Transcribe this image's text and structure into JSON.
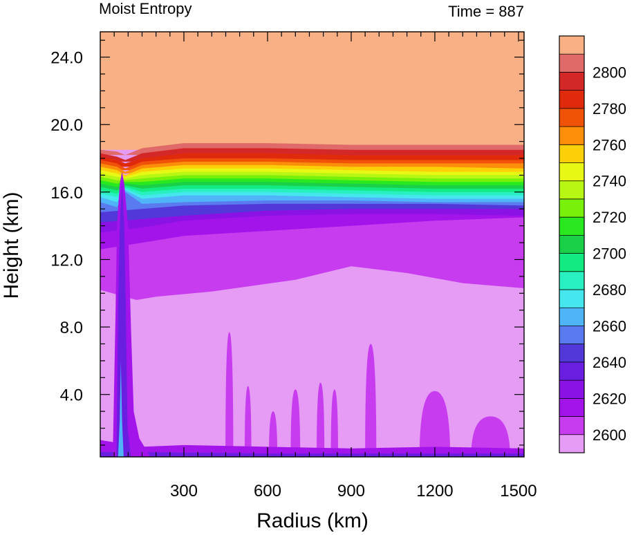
{
  "chart_data": {
    "type": "heatmap",
    "title": "Moist Entropy",
    "time_label": "Time = 887",
    "xlabel": "Radius (km)",
    "ylabel": "Height (km)",
    "xlim": [
      0,
      1520
    ],
    "ylim": [
      0.3,
      25.5
    ],
    "x_ticks": [
      300,
      600,
      900,
      1200,
      1500
    ],
    "x_tick_labels": [
      "300",
      "600",
      "900",
      "1200",
      "1500"
    ],
    "y_ticks": [
      4,
      8,
      12,
      16,
      20,
      24
    ],
    "y_tick_labels": [
      "4.0",
      "8.0",
      "12.0",
      "16.0",
      "20.0",
      "24.0"
    ],
    "colorbar": {
      "levels": [
        2600,
        2610,
        2620,
        2630,
        2640,
        2650,
        2660,
        2670,
        2680,
        2690,
        2700,
        2710,
        2720,
        2730,
        2740,
        2750,
        2760,
        2770,
        2780,
        2790,
        2800
      ],
      "labels": [
        "2600",
        "2620",
        "2640",
        "2660",
        "2680",
        "2700",
        "2720",
        "2740",
        "2760",
        "2780",
        "2800"
      ],
      "colors": [
        "#e69cf5",
        "#c83cf0",
        "#a314ea",
        "#8a12e4",
        "#6a1ee0",
        "#5238d8",
        "#5a7af0",
        "#4fb4f8",
        "#46e6ee",
        "#28f0c0",
        "#14ea82",
        "#1ad048",
        "#2ae820",
        "#78f00a",
        "#b8f614",
        "#e6f814",
        "#fcd008",
        "#fc8e0a",
        "#f05208",
        "#e02a0c",
        "#d42828",
        "#e06a6a",
        "#f8b084"
      ]
    },
    "layers": [
      {
        "name": "2800",
        "color": "#f8b084",
        "top": [
          [
            0,
            25.5
          ],
          [
            1520,
            25.5
          ]
        ],
        "bottom": [
          [
            0,
            18.5
          ],
          [
            1520,
            18.5
          ]
        ]
      },
      {
        "name": "2790",
        "color": "#e06a6a",
        "top": [
          [
            0,
            18.5
          ],
          [
            60,
            18.4
          ],
          [
            90,
            18.2
          ],
          [
            150,
            18.6
          ],
          [
            300,
            18.9
          ],
          [
            600,
            18.9
          ],
          [
            900,
            18.8
          ],
          [
            1200,
            18.8
          ],
          [
            1520,
            18.8
          ]
        ],
        "bottom": [
          [
            0,
            18.2
          ],
          [
            1520,
            18.2
          ]
        ]
      },
      {
        "name": "2780",
        "color": "#d42828",
        "top": [
          [
            0,
            18.3
          ],
          [
            60,
            18.1
          ],
          [
            90,
            17.9
          ],
          [
            150,
            18.3
          ],
          [
            300,
            18.6
          ],
          [
            600,
            18.6
          ],
          [
            900,
            18.5
          ],
          [
            1200,
            18.5
          ],
          [
            1520,
            18.5
          ]
        ],
        "bottom": [
          [
            0,
            17.8
          ],
          [
            1520,
            17.8
          ]
        ]
      },
      {
        "name": "2770",
        "color": "#e02a0c",
        "top": [
          [
            0,
            18.1
          ],
          [
            60,
            17.9
          ],
          [
            90,
            17.7
          ],
          [
            150,
            18.0
          ],
          [
            300,
            18.3
          ],
          [
            600,
            18.3
          ],
          [
            900,
            18.2
          ],
          [
            1200,
            18.2
          ],
          [
            1520,
            18.2
          ]
        ],
        "bottom": [
          [
            0,
            17.5
          ],
          [
            1520,
            17.5
          ]
        ]
      },
      {
        "name": "2760",
        "color": "#f05208",
        "top": [
          [
            0,
            17.9
          ],
          [
            60,
            17.7
          ],
          [
            90,
            17.4
          ],
          [
            150,
            17.8
          ],
          [
            300,
            18.0
          ],
          [
            600,
            18.0
          ],
          [
            900,
            17.9
          ],
          [
            1200,
            17.9
          ],
          [
            1520,
            17.9
          ]
        ],
        "bottom": [
          [
            0,
            17.3
          ],
          [
            1520,
            17.3
          ]
        ]
      },
      {
        "name": "2750",
        "color": "#fc8e0a",
        "top": [
          [
            0,
            17.7
          ],
          [
            60,
            17.5
          ],
          [
            90,
            17.2
          ],
          [
            150,
            17.6
          ],
          [
            300,
            17.8
          ],
          [
            600,
            17.8
          ],
          [
            900,
            17.7
          ],
          [
            1200,
            17.7
          ],
          [
            1520,
            17.7
          ]
        ],
        "bottom": [
          [
            0,
            17.1
          ],
          [
            1520,
            17.1
          ]
        ]
      },
      {
        "name": "2740",
        "color": "#fcd008",
        "top": [
          [
            0,
            17.5
          ],
          [
            60,
            17.3
          ],
          [
            90,
            17.0
          ],
          [
            150,
            17.4
          ],
          [
            300,
            17.6
          ],
          [
            600,
            17.6
          ],
          [
            900,
            17.5
          ],
          [
            1200,
            17.5
          ],
          [
            1520,
            17.4
          ]
        ],
        "bottom": [
          [
            0,
            16.9
          ],
          [
            1520,
            16.9
          ]
        ]
      },
      {
        "name": "2730",
        "color": "#e6f814",
        "top": [
          [
            0,
            17.3
          ],
          [
            60,
            17.1
          ],
          [
            90,
            16.9
          ],
          [
            150,
            17.2
          ],
          [
            300,
            17.4
          ],
          [
            600,
            17.4
          ],
          [
            900,
            17.3
          ],
          [
            1200,
            17.2
          ],
          [
            1520,
            17.2
          ]
        ],
        "bottom": [
          [
            0,
            16.7
          ],
          [
            1520,
            16.7
          ]
        ]
      },
      {
        "name": "2720",
        "color": "#b8f614",
        "top": [
          [
            0,
            17.1
          ],
          [
            60,
            16.9
          ],
          [
            90,
            16.8
          ],
          [
            150,
            17.0
          ],
          [
            300,
            17.2
          ],
          [
            600,
            17.2
          ],
          [
            900,
            17.1
          ],
          [
            1200,
            17.0
          ],
          [
            1520,
            17.0
          ]
        ],
        "bottom": [
          [
            0,
            16.5
          ],
          [
            1520,
            16.5
          ]
        ]
      },
      {
        "name": "2710",
        "color": "#78f00a",
        "top": [
          [
            0,
            16.9
          ],
          [
            60,
            16.7
          ],
          [
            90,
            16.7
          ],
          [
            150,
            16.8
          ],
          [
            300,
            17.0
          ],
          [
            600,
            17.0
          ],
          [
            900,
            16.9
          ],
          [
            1200,
            16.8
          ],
          [
            1520,
            16.8
          ]
        ],
        "bottom": [
          [
            0,
            16.3
          ],
          [
            1520,
            16.3
          ]
        ]
      },
      {
        "name": "2700",
        "color": "#2ae820",
        "top": [
          [
            0,
            16.7
          ],
          [
            60,
            16.5
          ],
          [
            90,
            16.6
          ],
          [
            150,
            16.6
          ],
          [
            300,
            16.8
          ],
          [
            600,
            16.8
          ],
          [
            900,
            16.7
          ],
          [
            1200,
            16.6
          ],
          [
            1520,
            16.6
          ]
        ],
        "bottom": [
          [
            0,
            16.1
          ],
          [
            1520,
            16.1
          ]
        ]
      },
      {
        "name": "2690",
        "color": "#1ad048",
        "top": [
          [
            0,
            16.5
          ],
          [
            60,
            16.3
          ],
          [
            90,
            16.5
          ],
          [
            150,
            16.4
          ],
          [
            300,
            16.6
          ],
          [
            600,
            16.6
          ],
          [
            900,
            16.5
          ],
          [
            1200,
            16.4
          ],
          [
            1520,
            16.4
          ]
        ],
        "bottom": [
          [
            0,
            15.9
          ],
          [
            1520,
            15.9
          ]
        ]
      },
      {
        "name": "2680",
        "color": "#14ea82",
        "top": [
          [
            0,
            16.3
          ],
          [
            60,
            16.1
          ],
          [
            90,
            16.4
          ],
          [
            150,
            16.2
          ],
          [
            300,
            16.4
          ],
          [
            600,
            16.4
          ],
          [
            900,
            16.3
          ],
          [
            1200,
            16.2
          ],
          [
            1520,
            16.2
          ]
        ],
        "bottom": [
          [
            0,
            15.7
          ],
          [
            1520,
            15.7
          ]
        ]
      },
      {
        "name": "2670",
        "color": "#28f0c0",
        "top": [
          [
            0,
            16.1
          ],
          [
            60,
            15.9
          ],
          [
            90,
            16.3
          ],
          [
            150,
            16.0
          ],
          [
            300,
            16.2
          ],
          [
            600,
            16.2
          ],
          [
            900,
            16.1
          ],
          [
            1200,
            16.0
          ],
          [
            1520,
            16.0
          ]
        ],
        "bottom": [
          [
            0,
            15.5
          ],
          [
            1520,
            15.5
          ]
        ]
      },
      {
        "name": "2660",
        "color": "#46e6ee",
        "top": [
          [
            0,
            15.9
          ],
          [
            60,
            15.7
          ],
          [
            90,
            16.2
          ],
          [
            150,
            15.8
          ],
          [
            300,
            16.0
          ],
          [
            600,
            16.0
          ],
          [
            900,
            15.9
          ],
          [
            1200,
            15.8
          ],
          [
            1520,
            15.8
          ]
        ],
        "bottom": [
          [
            0,
            15.3
          ],
          [
            1520,
            15.3
          ]
        ]
      },
      {
        "name": "2650",
        "color": "#4fb4f8",
        "top": [
          [
            0,
            15.7
          ],
          [
            60,
            15.4
          ],
          [
            90,
            16.1
          ],
          [
            150,
            15.6
          ],
          [
            300,
            15.8
          ],
          [
            600,
            15.8
          ],
          [
            900,
            15.7
          ],
          [
            1200,
            15.6
          ],
          [
            1520,
            15.6
          ]
        ],
        "bottom": [
          [
            0,
            15.0
          ],
          [
            1520,
            15.0
          ]
        ]
      },
      {
        "name": "2640",
        "color": "#5a7af0",
        "top": [
          [
            0,
            15.4
          ],
          [
            60,
            15.1
          ],
          [
            90,
            16.0
          ],
          [
            150,
            15.3
          ],
          [
            300,
            15.4
          ],
          [
            600,
            15.5
          ],
          [
            900,
            15.5
          ],
          [
            1200,
            15.4
          ],
          [
            1520,
            15.4
          ]
        ],
        "bottom": [
          [
            0,
            14.5
          ],
          [
            1520,
            14.5
          ]
        ]
      },
      {
        "name": "2630",
        "color": "#5238d8",
        "top": [
          [
            0,
            14.8
          ],
          [
            150,
            15.0
          ],
          [
            300,
            15.2
          ],
          [
            600,
            15.3
          ],
          [
            900,
            15.3
          ],
          [
            1200,
            15.3
          ],
          [
            1520,
            15.2
          ]
        ],
        "bottom": [
          [
            0,
            13.8
          ],
          [
            1520,
            13.8
          ]
        ]
      },
      {
        "name": "2620",
        "color": "#8a12e4",
        "top": [
          [
            0,
            14.2
          ],
          [
            150,
            14.4
          ],
          [
            300,
            14.6
          ],
          [
            600,
            14.9
          ],
          [
            900,
            15.0
          ],
          [
            1200,
            15.0
          ],
          [
            1520,
            15.0
          ]
        ],
        "bottom": [
          [
            0,
            13.0
          ],
          [
            1520,
            13.0
          ]
        ]
      },
      {
        "name": "2610",
        "color": "#a314ea",
        "top": [
          [
            0,
            13.6
          ],
          [
            150,
            13.9
          ],
          [
            300,
            14.3
          ],
          [
            600,
            14.6
          ],
          [
            900,
            14.7
          ],
          [
            1200,
            14.7
          ],
          [
            1520,
            14.6
          ]
        ],
        "bottom": [
          [
            0,
            0.3
          ],
          [
            1520,
            0.3
          ]
        ]
      },
      {
        "name": "2600",
        "color": "#c83cf0",
        "top": [
          [
            0,
            12.6
          ],
          [
            150,
            13.0
          ],
          [
            300,
            13.4
          ],
          [
            600,
            13.7
          ],
          [
            900,
            14.0
          ],
          [
            1200,
            14.3
          ],
          [
            1520,
            14.5
          ]
        ],
        "bottom": [
          [
            0,
            0.3
          ],
          [
            1520,
            0.3
          ]
        ]
      },
      {
        "name": "2590",
        "color": "#e69cf5",
        "top": [
          [
            0,
            10.2
          ],
          [
            130,
            9.6
          ],
          [
            200,
            9.8
          ],
          [
            400,
            10.1
          ],
          [
            700,
            10.8
          ],
          [
            900,
            11.6
          ],
          [
            1100,
            11.2
          ],
          [
            1300,
            10.6
          ],
          [
            1520,
            10.3
          ]
        ],
        "bottom": [
          [
            0,
            0.6
          ],
          [
            1520,
            0.6
          ]
        ]
      }
    ],
    "plumes": [
      {
        "x": 463,
        "top": 7.7,
        "width": 28
      },
      {
        "x": 530,
        "top": 4.5,
        "width": 24
      },
      {
        "x": 620,
        "top": 3.0,
        "width": 30
      },
      {
        "x": 700,
        "top": 4.3,
        "width": 34
      },
      {
        "x": 790,
        "top": 4.7,
        "width": 28
      },
      {
        "x": 840,
        "top": 4.3,
        "width": 26
      },
      {
        "x": 970,
        "top": 7.0,
        "width": 40
      },
      {
        "x": 1200,
        "top": 4.2,
        "width": 110
      },
      {
        "x": 1400,
        "top": 2.7,
        "width": 140
      }
    ]
  }
}
